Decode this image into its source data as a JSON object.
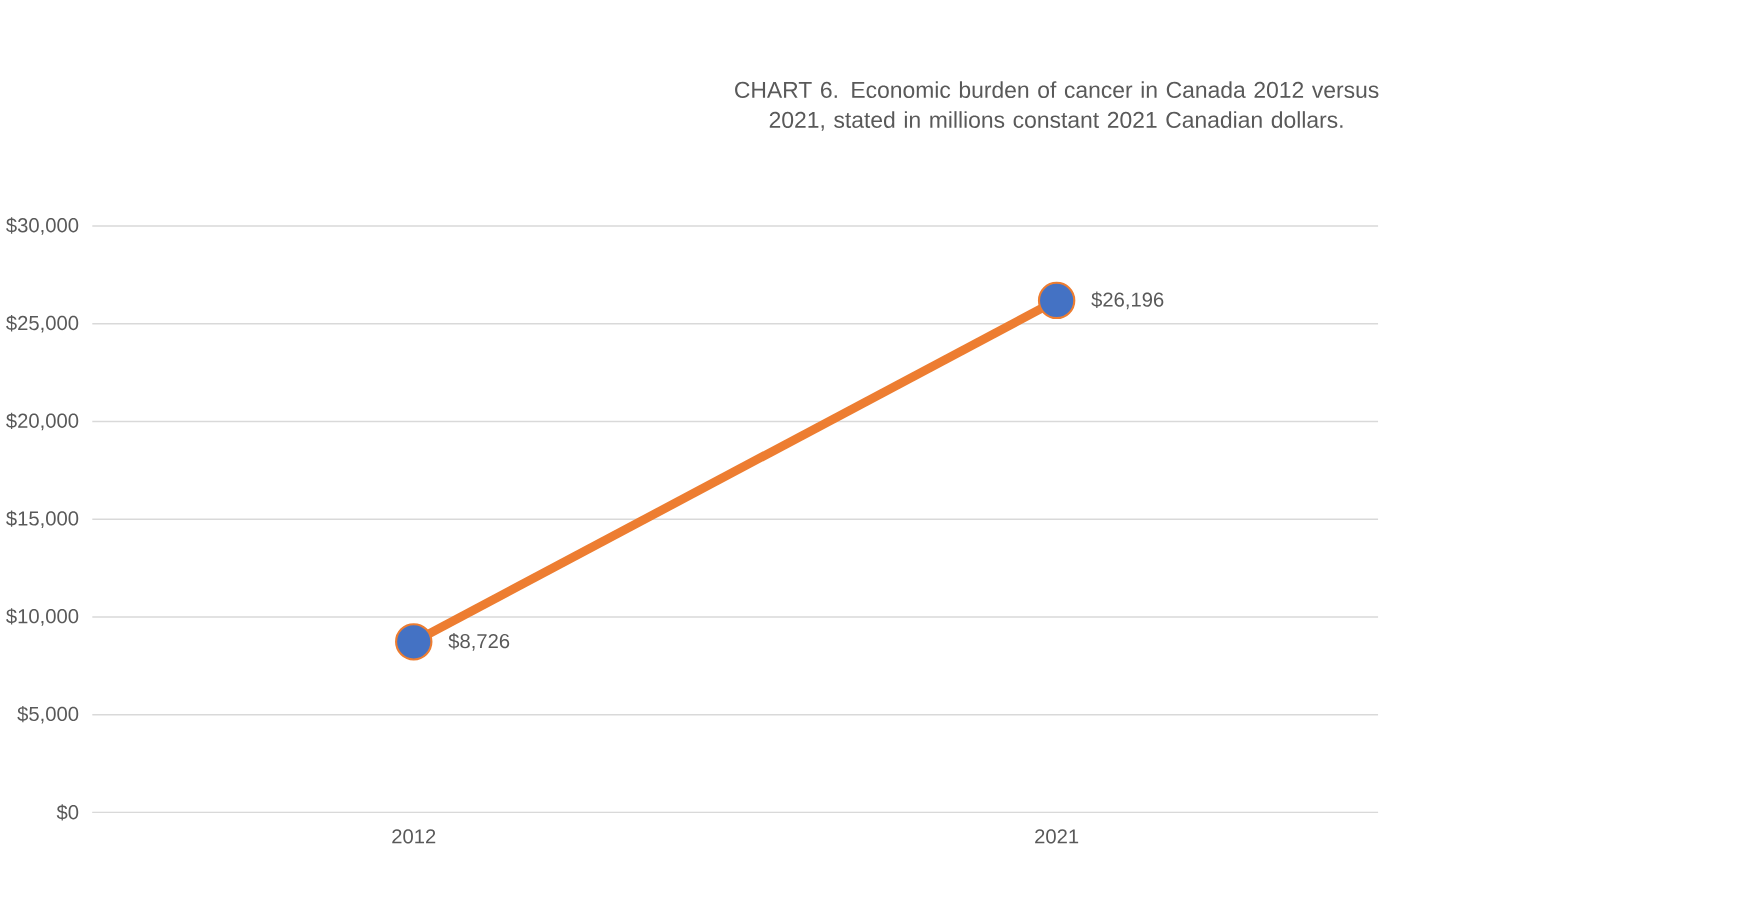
{
  "chart_data": {
    "type": "line",
    "title": "CHART 6. Economic burden of cancer in Canada 2012 versus 2021, stated in millions constant 2021 Canadian dollars.",
    "categories": [
      "2012",
      "2021"
    ],
    "series": [
      {
        "color": "#ed7d31",
        "colors": [
          "#4472c4",
          "#4472c4"
        ],
        "values": [
          8726,
          26196
        ],
        "value_labels": [
          "$8,726",
          "$26,196"
        ]
      }
    ],
    "ylim": [
      0,
      30000
    ],
    "yticks": [
      {
        "value": 0,
        "label": "$0"
      },
      {
        "value": 5000,
        "label": "$5,000"
      },
      {
        "value": 10000,
        "label": "$10,000"
      },
      {
        "value": 15000,
        "label": "$15,000"
      },
      {
        "value": 20000,
        "label": "$20,000"
      },
      {
        "value": 25000,
        "label": "$25,000"
      },
      {
        "value": 30000,
        "label": "$30,000"
      }
    ],
    "grid": "y",
    "marker": "circle",
    "line_style": "solid"
  }
}
